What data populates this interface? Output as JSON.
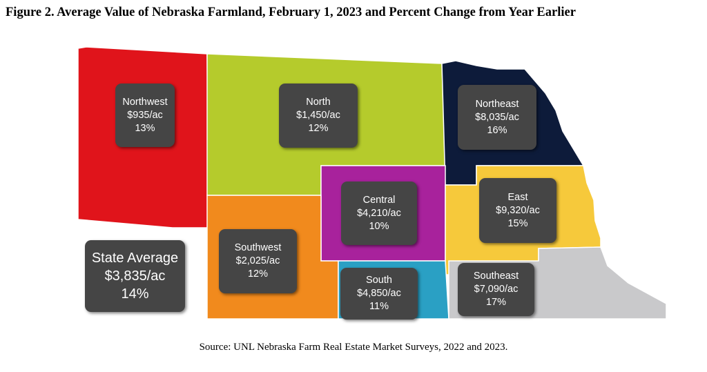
{
  "title": "Figure 2.  Average Value of Nebraska Farmland, February 1, 2023 and Percent Change from Year Earlier",
  "source": "Source:  UNL Nebraska Farm Real Estate Market Surveys, 2022 and 2023.",
  "regions": {
    "northwest": {
      "name": "Northwest",
      "value": "$935/ac",
      "change": "13%",
      "color": "#e0141b"
    },
    "north": {
      "name": "North",
      "value": "$1,450/ac",
      "change": "12%",
      "color": "#b5cb2c"
    },
    "northeast": {
      "name": "Northeast",
      "value": "$8,035/ac",
      "change": "16%",
      "color": "#0d1b3a"
    },
    "central": {
      "name": "Central",
      "value": "$4,210/ac",
      "change": "10%",
      "color": "#a8229c"
    },
    "east": {
      "name": "East",
      "value": "$9,320/ac",
      "change": "15%",
      "color": "#f6c93b"
    },
    "southwest": {
      "name": "Southwest",
      "value": "$2,025/ac",
      "change": "12%",
      "color": "#f18a1d"
    },
    "south": {
      "name": "South",
      "value": "$4,850/ac",
      "change": "11%",
      "color": "#2aa0c4"
    },
    "southeast": {
      "name": "Southeast",
      "value": "$7,090/ac",
      "change": "17%",
      "color": "#c9c9cb"
    }
  },
  "state_average": {
    "name": "State Average",
    "value": "$3,835/ac",
    "change": "14%"
  }
}
